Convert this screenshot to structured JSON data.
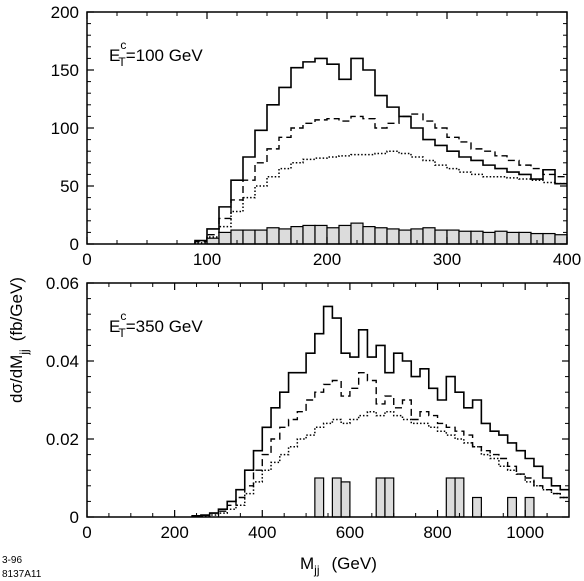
{
  "ylabel": "dσ/dM",
  "ylabel_sub": "jj",
  "ylabel_unit": "(fb/GeV)",
  "xlabel": "M",
  "xlabel_sub": "jj",
  "xlabel_unit": "(GeV)",
  "footer_lines": [
    "3-96",
    "8137A11"
  ],
  "chart_data": [
    {
      "type": "line",
      "annotation": {
        "prefix": "E",
        "sub": "T",
        "sup": "c",
        "value": "=100 GeV"
      },
      "xlim": [
        0,
        400
      ],
      "ylim": [
        0,
        200
      ],
      "xticks": [
        0,
        100,
        200,
        300,
        400
      ],
      "yticks": [
        0,
        50,
        100,
        150,
        200
      ],
      "bin_edges": [
        90,
        100,
        110,
        120,
        130,
        140,
        150,
        160,
        170,
        180,
        190,
        200,
        210,
        220,
        230,
        240,
        250,
        260,
        270,
        280,
        290,
        300,
        310,
        320,
        330,
        340,
        350,
        360,
        370,
        380,
        390,
        400
      ],
      "series": [
        {
          "style": "solid",
          "values": [
            3,
            13,
            32,
            55,
            75,
            98,
            120,
            135,
            152,
            157,
            160,
            155,
            142,
            160,
            150,
            128,
            118,
            110,
            100,
            90,
            85,
            80,
            75,
            72,
            68,
            65,
            62,
            60,
            56,
            64,
            52
          ]
        },
        {
          "style": "dashed",
          "values": [
            2,
            8,
            22,
            38,
            55,
            70,
            82,
            92,
            100,
            104,
            107,
            108,
            106,
            110,
            108,
            100,
            104,
            110,
            112,
            106,
            100,
            92,
            88,
            82,
            80,
            76,
            72,
            68,
            65,
            60,
            58
          ]
        },
        {
          "style": "dotted",
          "values": [
            1,
            6,
            15,
            28,
            40,
            50,
            58,
            65,
            70,
            73,
            74,
            75,
            76,
            77,
            77,
            78,
            80,
            78,
            75,
            72,
            68,
            65,
            62,
            60,
            58,
            58,
            57,
            56,
            55,
            53,
            52
          ]
        },
        {
          "style": "filled",
          "values": [
            0,
            5,
            10,
            12,
            12,
            12,
            14,
            13,
            15,
            16,
            16,
            14,
            16,
            18,
            15,
            14,
            13,
            12,
            13,
            14,
            12,
            12,
            11,
            11,
            10,
            11,
            10,
            10,
            9,
            9,
            8
          ]
        }
      ]
    },
    {
      "type": "line",
      "annotation": {
        "prefix": "E",
        "sub": "T",
        "sup": "c",
        "value": "=350 GeV"
      },
      "xlim": [
        0,
        1100
      ],
      "ylim": [
        0,
        0.06
      ],
      "xticks": [
        0,
        200,
        400,
        600,
        800,
        1000
      ],
      "yticks": [
        0,
        0.02,
        0.04,
        0.06
      ],
      "ytick_labels": [
        "0",
        "0.02",
        "0.04",
        "0.06"
      ],
      "bin_edges": [
        240,
        260,
        280,
        300,
        320,
        340,
        360,
        380,
        400,
        420,
        440,
        460,
        480,
        500,
        520,
        540,
        560,
        580,
        600,
        620,
        640,
        660,
        680,
        700,
        720,
        740,
        760,
        780,
        800,
        820,
        840,
        860,
        880,
        900,
        920,
        940,
        960,
        980,
        1000,
        1020,
        1040,
        1060,
        1080,
        1100
      ],
      "series": [
        {
          "style": "solid",
          "values": [
            0.0003,
            0.0005,
            0.001,
            0.002,
            0.004,
            0.007,
            0.012,
            0.017,
            0.023,
            0.028,
            0.032,
            0.037,
            0.037,
            0.042,
            0.047,
            0.054,
            0.051,
            0.042,
            0.041,
            0.048,
            0.041,
            0.044,
            0.037,
            0.042,
            0.04,
            0.036,
            0.038,
            0.033,
            0.03,
            0.036,
            0.032,
            0.028,
            0.03,
            0.024,
            0.022,
            0.021,
            0.019,
            0.017,
            0.015,
            0.013,
            0.01,
            0.008,
            0.007
          ]
        },
        {
          "style": "dashed",
          "values": [
            0.0002,
            0.0004,
            0.001,
            0.0015,
            0.003,
            0.005,
            0.008,
            0.012,
            0.016,
            0.02,
            0.023,
            0.025,
            0.027,
            0.03,
            0.032,
            0.034,
            0.035,
            0.031,
            0.033,
            0.037,
            0.035,
            0.029,
            0.031,
            0.028,
            0.03,
            0.025,
            0.027,
            0.026,
            0.024,
            0.023,
            0.022,
            0.021,
            0.018,
            0.017,
            0.016,
            0.015,
            0.013,
            0.011,
            0.01,
            0.008,
            0.007,
            0.006,
            0.005
          ]
        },
        {
          "style": "dotted",
          "values": [
            0.0001,
            0.0003,
            0.0005,
            0.001,
            0.002,
            0.003,
            0.006,
            0.009,
            0.012,
            0.014,
            0.016,
            0.018,
            0.02,
            0.021,
            0.023,
            0.024,
            0.025,
            0.024,
            0.025,
            0.026,
            0.027,
            0.026,
            0.027,
            0.026,
            0.025,
            0.024,
            0.024,
            0.023,
            0.022,
            0.021,
            0.02,
            0.019,
            0.018,
            0.016,
            0.015,
            0.013,
            0.012,
            0.011,
            0.009,
            0.008,
            0.007,
            0.006,
            0.005
          ]
        },
        {
          "style": "filled",
          "values": [
            0,
            0,
            0,
            0,
            0,
            0,
            0,
            0,
            0,
            0,
            0,
            0,
            0,
            0,
            0.01,
            0,
            0.01,
            0.009,
            0,
            0,
            0,
            0.01,
            0.01,
            0,
            0,
            0,
            0,
            0,
            0,
            0.01,
            0.01,
            0,
            0.005,
            0,
            0,
            0,
            0.005,
            0,
            0.005,
            0,
            0,
            0,
            0
          ]
        }
      ]
    }
  ]
}
